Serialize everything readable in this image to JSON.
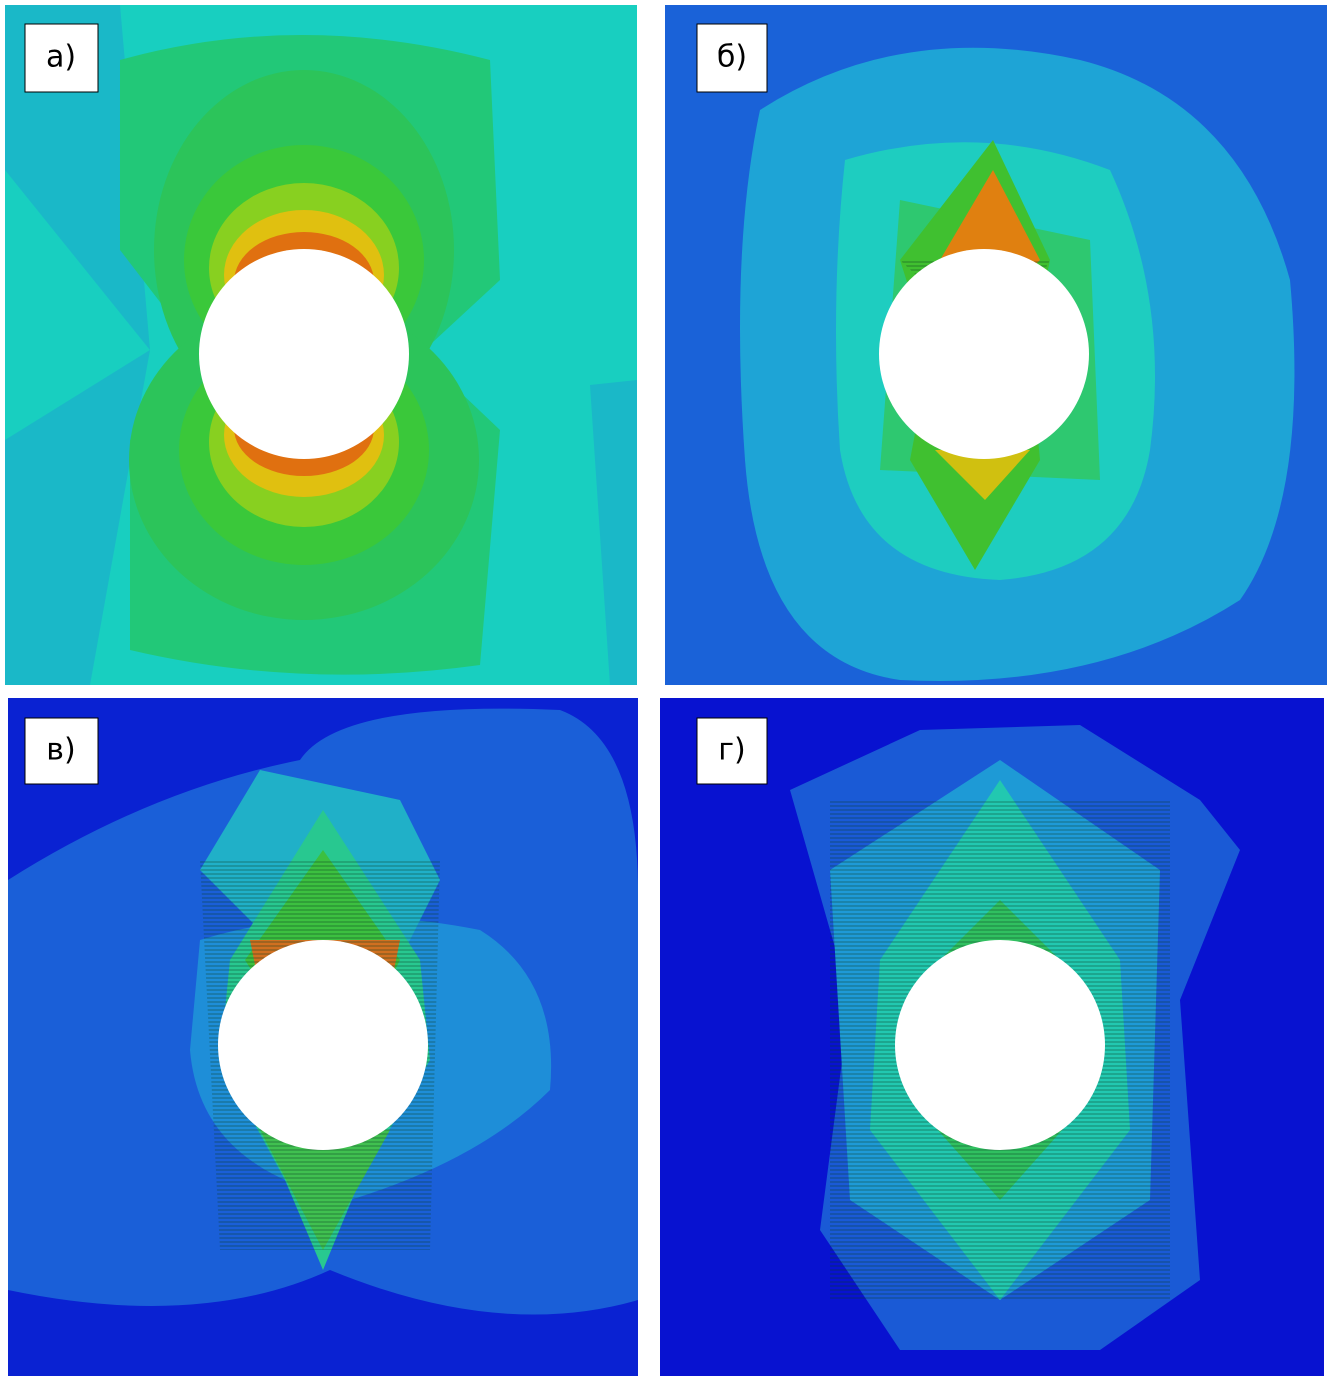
{
  "panels": [
    {
      "label": "а)"
    },
    {
      "label": "б)"
    },
    {
      "label": "в)"
    },
    {
      "label": "г)"
    }
  ]
}
